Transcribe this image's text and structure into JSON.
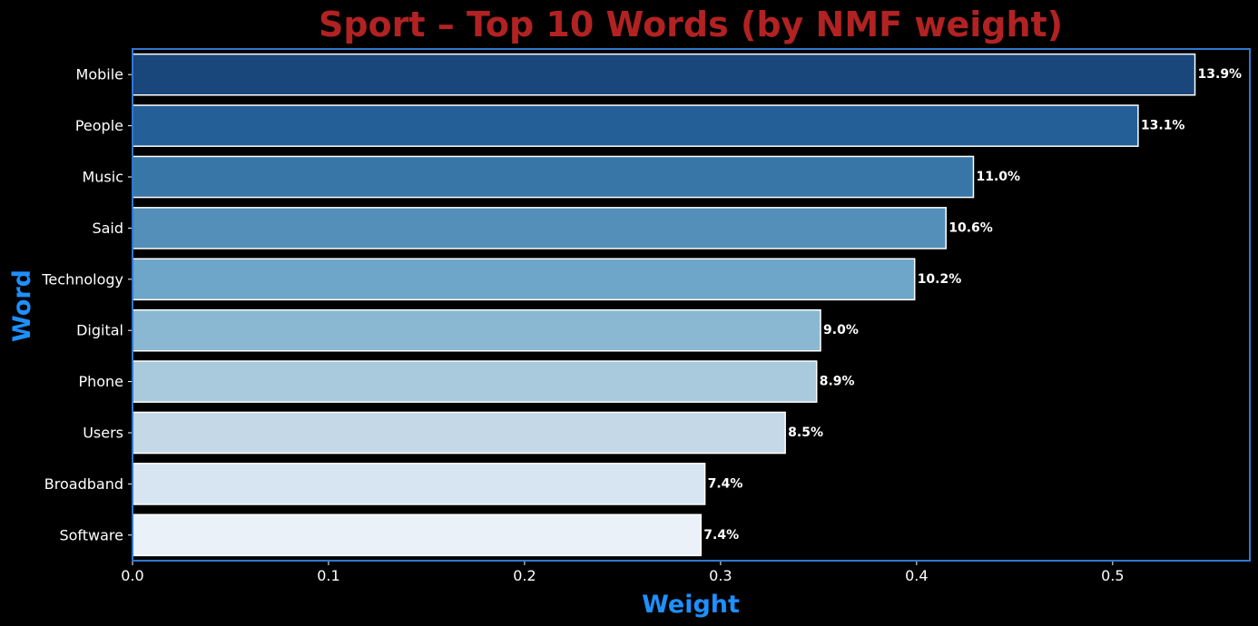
{
  "chart_data": {
    "type": "bar",
    "orientation": "horizontal",
    "title": "Sport – Top 10 Words (by NMF weight)",
    "xlabel": "Weight",
    "ylabel": "Word",
    "xlim": [
      0,
      0.57
    ],
    "x_ticks": [
      {
        "value": 0.0,
        "label": "0.0"
      },
      {
        "value": 0.1,
        "label": "0.1"
      },
      {
        "value": 0.2,
        "label": "0.2"
      },
      {
        "value": 0.3,
        "label": "0.3"
      },
      {
        "value": 0.4,
        "label": "0.4"
      },
      {
        "value": 0.5,
        "label": "0.5"
      }
    ],
    "grid": false,
    "categories": [
      "Mobile",
      "People",
      "Music",
      "Said",
      "Technology",
      "Digital",
      "Phone",
      "Users",
      "Broadband",
      "Software"
    ],
    "values": [
      0.542,
      0.513,
      0.429,
      0.415,
      0.399,
      0.351,
      0.349,
      0.333,
      0.292,
      0.29
    ],
    "data_labels": [
      "13.9%",
      "13.1%",
      "11.0%",
      "10.6%",
      "10.2%",
      "9.0%",
      "8.9%",
      "8.5%",
      "7.4%",
      "7.4%"
    ],
    "bar_colors": [
      "#1a477b",
      "#245f97",
      "#3976a8",
      "#538fb8",
      "#6da6c8",
      "#8ab8d3",
      "#a9c9dc",
      "#c4d8e7",
      "#d7e5f2",
      "#eaf1f9"
    ],
    "colors": {
      "background": "#000000",
      "title": "#b22222",
      "axis_label": "#1e90ff",
      "frame": "#2f78d0",
      "text": "#ffffff",
      "bar_edge": "#ffffff"
    }
  }
}
